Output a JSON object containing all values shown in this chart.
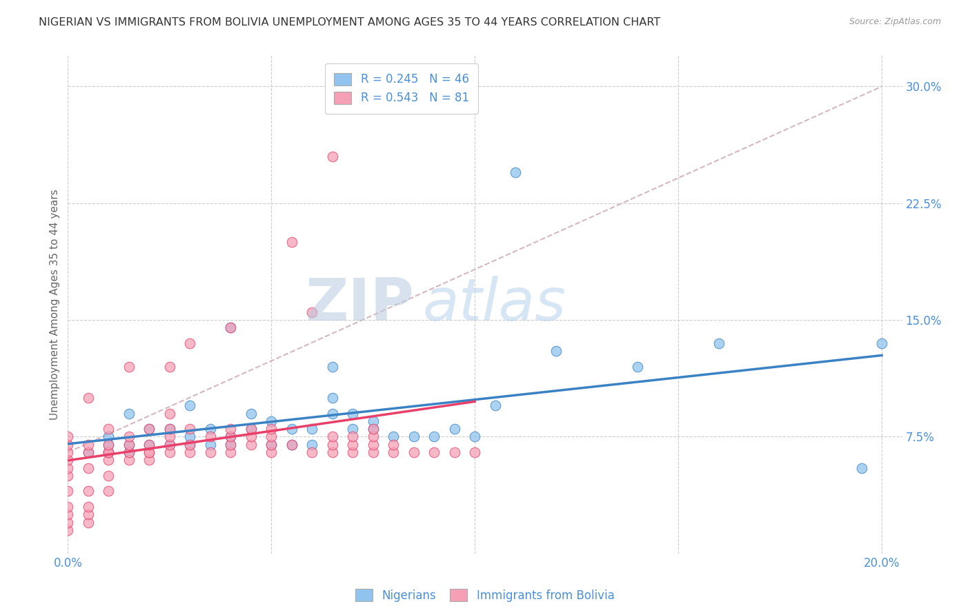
{
  "title": "NIGERIAN VS IMMIGRANTS FROM BOLIVIA UNEMPLOYMENT AMONG AGES 35 TO 44 YEARS CORRELATION CHART",
  "source": "Source: ZipAtlas.com",
  "ylabel": "Unemployment Among Ages 35 to 44 years",
  "xlim": [
    0.0,
    0.205
  ],
  "ylim": [
    0.0,
    0.32
  ],
  "xticks": [
    0.0,
    0.05,
    0.1,
    0.15,
    0.2
  ],
  "yticks_right": [
    0.075,
    0.15,
    0.225,
    0.3
  ],
  "ytickslabels_right": [
    "7.5%",
    "15.0%",
    "22.5%",
    "30.0%"
  ],
  "color_nigerian": "#90C4EE",
  "color_bolivia": "#F5A0B5",
  "color_trend_nigerian": "#3B82C4",
  "color_trend_bolivia": "#E8406A",
  "color_diag": "#D0B0B8",
  "tick_color": "#4A90D9",
  "watermark_zip": "ZIP",
  "watermark_atlas": "atlas",
  "nigerian_x": [
    0.005,
    0.01,
    0.01,
    0.01,
    0.015,
    0.015,
    0.015,
    0.02,
    0.02,
    0.025,
    0.025,
    0.03,
    0.03,
    0.03,
    0.035,
    0.035,
    0.04,
    0.04,
    0.04,
    0.045,
    0.045,
    0.05,
    0.05,
    0.055,
    0.055,
    0.06,
    0.06,
    0.065,
    0.065,
    0.065,
    0.07,
    0.07,
    0.075,
    0.075,
    0.08,
    0.085,
    0.09,
    0.095,
    0.1,
    0.105,
    0.11,
    0.12,
    0.14,
    0.16,
    0.195,
    0.2
  ],
  "nigerian_y": [
    0.065,
    0.065,
    0.07,
    0.075,
    0.065,
    0.07,
    0.09,
    0.07,
    0.08,
    0.07,
    0.08,
    0.07,
    0.075,
    0.095,
    0.07,
    0.08,
    0.07,
    0.075,
    0.145,
    0.08,
    0.09,
    0.07,
    0.085,
    0.07,
    0.08,
    0.07,
    0.08,
    0.09,
    0.1,
    0.12,
    0.08,
    0.09,
    0.08,
    0.085,
    0.075,
    0.075,
    0.075,
    0.08,
    0.075,
    0.095,
    0.245,
    0.13,
    0.12,
    0.135,
    0.055,
    0.135
  ],
  "bolivia_x": [
    0.0,
    0.0,
    0.0,
    0.0,
    0.0,
    0.0,
    0.0,
    0.0,
    0.0,
    0.0,
    0.0,
    0.005,
    0.005,
    0.005,
    0.005,
    0.005,
    0.005,
    0.005,
    0.005,
    0.01,
    0.01,
    0.01,
    0.01,
    0.01,
    0.01,
    0.01,
    0.015,
    0.015,
    0.015,
    0.015,
    0.015,
    0.02,
    0.02,
    0.02,
    0.02,
    0.02,
    0.025,
    0.025,
    0.025,
    0.025,
    0.025,
    0.025,
    0.03,
    0.03,
    0.03,
    0.03,
    0.035,
    0.035,
    0.04,
    0.04,
    0.04,
    0.04,
    0.04,
    0.045,
    0.045,
    0.045,
    0.05,
    0.05,
    0.05,
    0.05,
    0.055,
    0.055,
    0.06,
    0.06,
    0.065,
    0.065,
    0.065,
    0.065,
    0.07,
    0.07,
    0.07,
    0.075,
    0.075,
    0.075,
    0.075,
    0.08,
    0.08,
    0.085,
    0.09,
    0.095,
    0.1
  ],
  "bolivia_y": [
    0.015,
    0.02,
    0.025,
    0.03,
    0.04,
    0.05,
    0.055,
    0.06,
    0.065,
    0.07,
    0.075,
    0.02,
    0.025,
    0.03,
    0.04,
    0.055,
    0.065,
    0.07,
    0.1,
    0.04,
    0.05,
    0.06,
    0.065,
    0.065,
    0.07,
    0.08,
    0.06,
    0.065,
    0.07,
    0.075,
    0.12,
    0.06,
    0.065,
    0.065,
    0.07,
    0.08,
    0.065,
    0.07,
    0.075,
    0.08,
    0.09,
    0.12,
    0.065,
    0.07,
    0.08,
    0.135,
    0.065,
    0.075,
    0.065,
    0.07,
    0.075,
    0.08,
    0.145,
    0.07,
    0.075,
    0.08,
    0.065,
    0.07,
    0.075,
    0.08,
    0.07,
    0.2,
    0.065,
    0.155,
    0.065,
    0.07,
    0.075,
    0.255,
    0.065,
    0.07,
    0.075,
    0.065,
    0.07,
    0.075,
    0.08,
    0.065,
    0.07,
    0.065,
    0.065,
    0.065,
    0.065
  ]
}
